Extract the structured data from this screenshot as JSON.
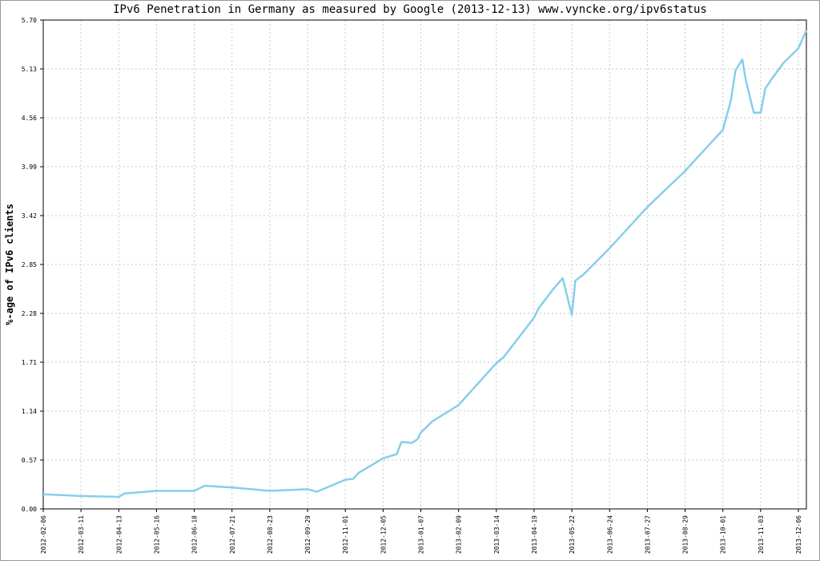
{
  "chart_data": {
    "type": "line",
    "title": "IPv6 Penetration in Germany as measured by Google (2013-12-13) www.vyncke.org/ipv6status",
    "y_label": "%-age of IPv6 clients",
    "x": [
      "2012-02-06",
      "2012-03-11",
      "2012-04-13",
      "2012-04-18",
      "2012-05-16",
      "2012-06-18",
      "2012-06-27",
      "2012-07-21",
      "2012-08-23",
      "2012-09-29",
      "2012-10-07",
      "2012-11-01",
      "2012-11-08",
      "2012-11-13",
      "2012-12-05",
      "2012-12-17",
      "2012-12-21",
      "2012-12-30",
      "2013-01-04",
      "2013-01-07",
      "2013-01-17",
      "2013-02-09",
      "2013-02-15",
      "2013-03-14",
      "2013-03-21",
      "2013-04-19",
      "2013-04-23",
      "2013-05-05",
      "2013-05-14",
      "2013-05-22",
      "2013-05-25",
      "2013-06-01",
      "2013-06-24",
      "2013-07-27",
      "2013-08-29",
      "2013-10-01",
      "2013-10-08",
      "2013-10-12",
      "2013-10-18",
      "2013-10-21",
      "2013-10-28",
      "2013-11-03",
      "2013-11-07",
      "2013-11-12",
      "2013-11-23",
      "2013-12-06",
      "2013-12-13"
    ],
    "series": [
      {
        "name": "Germany",
        "color": "#87ceeb",
        "values": [
          0.17,
          0.15,
          0.14,
          0.18,
          0.21,
          0.21,
          0.27,
          0.25,
          0.21,
          0.23,
          0.2,
          0.34,
          0.35,
          0.42,
          0.59,
          0.64,
          0.78,
          0.77,
          0.81,
          0.89,
          1.02,
          1.21,
          1.3,
          1.7,
          1.77,
          2.23,
          2.34,
          2.55,
          2.69,
          2.26,
          2.66,
          2.73,
          3.04,
          3.52,
          3.94,
          4.42,
          4.76,
          5.11,
          5.24,
          5.0,
          4.62,
          4.62,
          4.9,
          5.0,
          5.2,
          5.37,
          5.58
        ]
      }
    ],
    "xlim": [
      "2012-02-06",
      "2013-12-13"
    ],
    "xticks": [
      "2012-02-06",
      "2012-03-11",
      "2012-04-13",
      "2012-05-16",
      "2012-06-18",
      "2012-07-21",
      "2012-08-23",
      "2012-09-29",
      "2012-11-01",
      "2012-12-05",
      "2013-01-07",
      "2013-02-09",
      "2013-03-14",
      "2013-04-19",
      "2013-05-22",
      "2013-06-24",
      "2013-07-27",
      "2013-08-29",
      "2013-10-01",
      "2013-11-03",
      "2013-12-06"
    ],
    "ylim": [
      0,
      5.7
    ],
    "yticks": [
      {
        "value": 0,
        "label": "0.00"
      },
      0.57,
      1.14,
      1.71,
      2.28,
      2.85,
      3.42,
      3.99,
      4.56,
      5.13,
      {
        "value": 5.7,
        "label": "5.70"
      }
    ],
    "grid": true
  }
}
